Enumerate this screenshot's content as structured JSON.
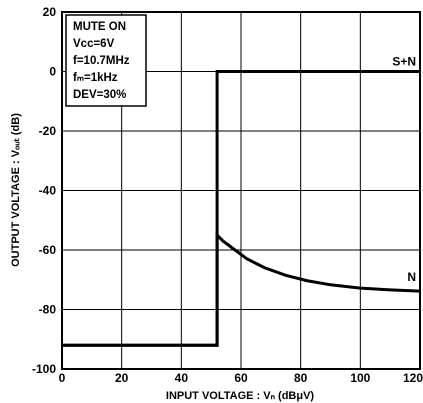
{
  "chart_data": {
    "type": "line",
    "title": "",
    "xlabel": "INPUT VOLTAGE : Vₙ (dBμV)",
    "ylabel": "OUTPUT VOLTAGE : Vₒᵤₜ (dB)",
    "xlim": [
      0,
      120
    ],
    "ylim": [
      -100,
      20
    ],
    "xticks": [
      0,
      20,
      40,
      60,
      80,
      100,
      120
    ],
    "yticks": [
      20,
      0,
      -20,
      -40,
      -60,
      -80,
      -100
    ],
    "grid": true,
    "conditions": [
      "MUTE ON",
      "Vcc=6V",
      "f=10.7MHz",
      "fₘ=1kHz",
      "DEV=30%"
    ],
    "series": [
      {
        "name": "S+N",
        "x": [
          0,
          52,
          52,
          120
        ],
        "y": [
          -92,
          -92,
          0,
          0
        ]
      },
      {
        "name": "N",
        "x": [
          0,
          52,
          52,
          54,
          58,
          62,
          68,
          75,
          82,
          90,
          100,
          110,
          120
        ],
        "y": [
          -92,
          -92,
          -55,
          -57,
          -60,
          -63,
          -66,
          -68.5,
          -70.3,
          -71.7,
          -72.8,
          -73.4,
          -73.8
        ]
      }
    ]
  }
}
